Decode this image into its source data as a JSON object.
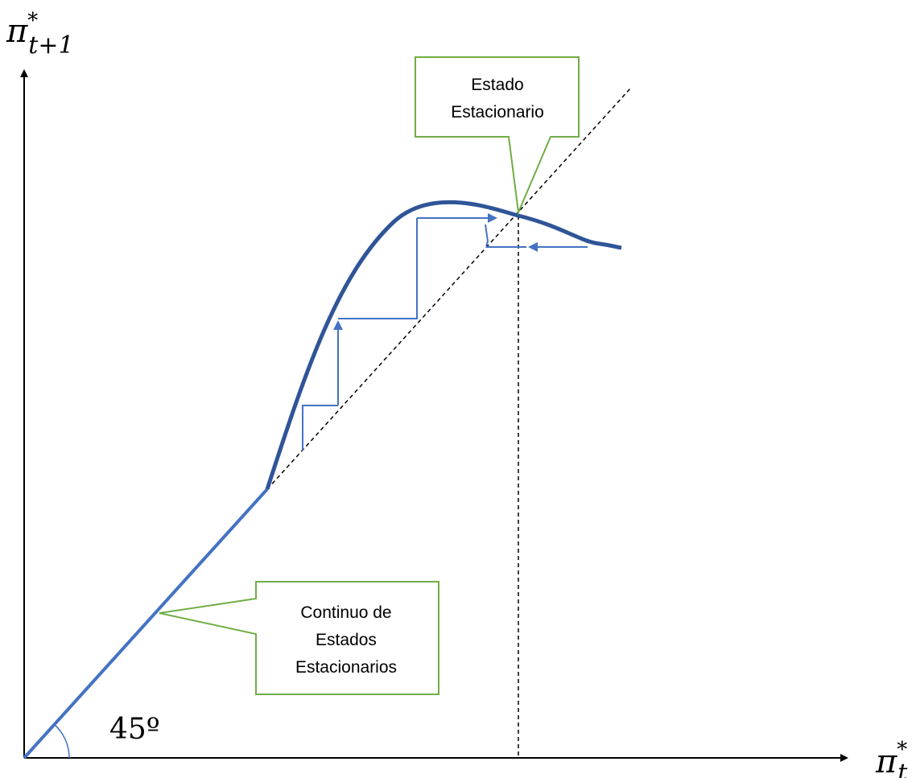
{
  "axes": {
    "y_label_base": "π",
    "y_label_sup": "*",
    "y_label_sub": "t+1",
    "x_label_base": "π",
    "x_label_sup": "*",
    "x_label_sub": "t"
  },
  "angle_label": "45º",
  "callouts": {
    "steady_state": {
      "line1": "Estado",
      "line2": "Estacionario"
    },
    "continuum": {
      "line1": "Continuo de",
      "line2": "Estados",
      "line3": "Estacionarios"
    }
  },
  "colors": {
    "axis": "#000000",
    "linear_segment": "#4472c4",
    "curve": "#2f5597",
    "cobweb": "#4472c4",
    "callout_border": "#70ad47",
    "dashed": "#000000"
  }
}
